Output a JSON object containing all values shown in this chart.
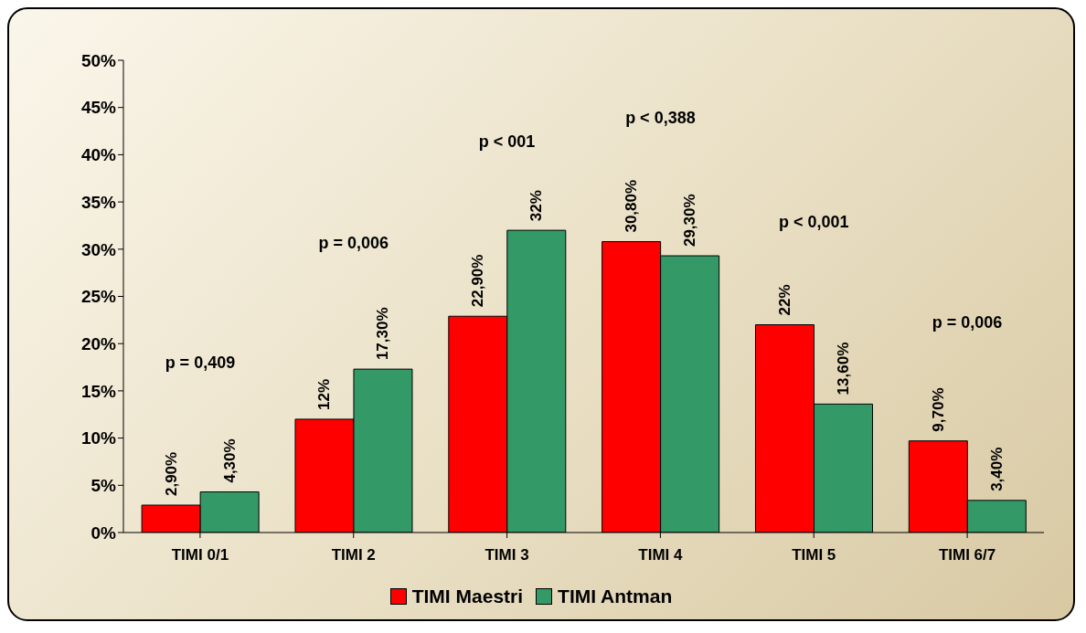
{
  "chart_data": {
    "type": "bar",
    "categories": [
      "TIMI 0/1",
      "TIMI 2",
      "TIMI 3",
      "TIMI 4",
      "TIMI 5",
      "TIMI 6/7"
    ],
    "series": [
      {
        "name": "TIMI Maestri",
        "color": "#ff0000",
        "values": [
          2.9,
          12,
          22.9,
          30.8,
          22,
          9.7
        ],
        "value_labels": [
          "2,90%",
          "12%",
          "22,90%",
          "30,80%",
          "22%",
          "9,70%"
        ]
      },
      {
        "name": "TIMI Antman",
        "color": "#339966",
        "values": [
          4.3,
          17.3,
          32,
          29.3,
          13.6,
          3.4
        ],
        "value_labels": [
          "4,30%",
          "17,30%",
          "32%",
          "29,30%",
          "13,60%",
          "3,40%"
        ]
      }
    ],
    "ylim": [
      0,
      50
    ],
    "yticks": [
      {
        "value": 0,
        "label": "0%"
      },
      {
        "value": 5,
        "label": "5%"
      },
      {
        "value": 10,
        "label": "10%"
      },
      {
        "value": 15,
        "label": "15%"
      },
      {
        "value": 20,
        "label": "20%"
      },
      {
        "value": 25,
        "label": "25%"
      },
      {
        "value": 30,
        "label": "30%"
      },
      {
        "value": 35,
        "label": "35%"
      },
      {
        "value": 40,
        "label": "40%"
      },
      {
        "value": 45,
        "label": "45%"
      },
      {
        "value": 50,
        "label": "50%"
      }
    ],
    "annotations": [
      "p = 0,409",
      "p = 0,006",
      "p < 001",
      "p <  0,388",
      "p <  0,001",
      "p =  0,006"
    ],
    "grid": false,
    "legend": "bottom"
  }
}
